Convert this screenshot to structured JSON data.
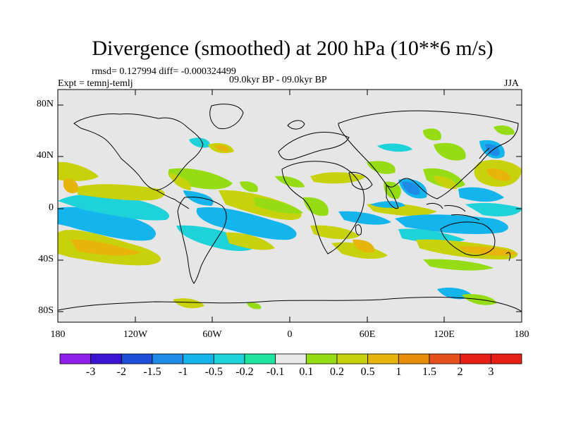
{
  "title": "Divergence (smoothed) at 200 hPa (10**6 m/s)",
  "stats_line": "rmsd= 0.127994   diff= -0.000324499",
  "left_label": "Expt = temnj-temlj",
  "center_label": "09.0kyr BP - 09.0kyr BP",
  "right_label": "JJA",
  "lat_labels": [
    "80N",
    "40N",
    "0",
    "40S",
    "80S"
  ],
  "lon_labels": [
    "180",
    "120W",
    "60W",
    "0",
    "60E",
    "120E",
    "180"
  ],
  "colorbar": {
    "labels": [
      "-3",
      "-2",
      "-1.5",
      "-1",
      "-0.5",
      "-0.2",
      "-0.1",
      "0.1",
      "0.2",
      "0.5",
      "1",
      "1.5",
      "2",
      "3"
    ],
    "colors": [
      "#8e1ee8",
      "#3c14d4",
      "#1e4ed8",
      "#1e8ce6",
      "#14b4ec",
      "#1ed2da",
      "#1ee6a0",
      "#e8e8e8",
      "#96dc14",
      "#c8d20a",
      "#e6b40a",
      "#e68c0a",
      "#e6501e",
      "#e61e14"
    ]
  },
  "colors": {
    "ocean_background": "#e6e6e6",
    "coastline": "#000000"
  }
}
